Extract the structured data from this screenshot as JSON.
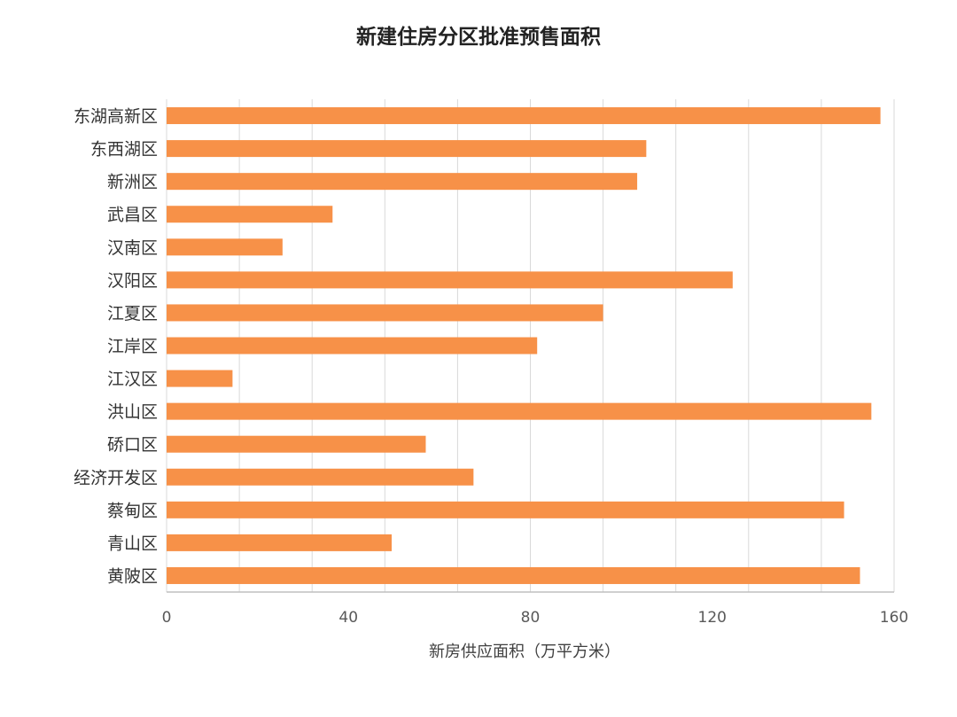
{
  "chart_data": {
    "type": "bar",
    "orientation": "horizontal",
    "title": "新建住房分区批准预售面积",
    "xlabel": "新房供应面积（万平方米）",
    "ylabel": "",
    "categories": [
      "东湖高新区",
      "东西湖区",
      "新洲区",
      "武昌区",
      "汉南区",
      "汉阳区",
      "江夏区",
      "江岸区",
      "江汉区",
      "洪山区",
      "硚口区",
      "经济开发区",
      "蔡甸区",
      "青山区",
      "黄陂区"
    ],
    "values": [
      157,
      105.5,
      103.5,
      36.5,
      25.5,
      124.5,
      96,
      81.5,
      14.5,
      155,
      57,
      67.5,
      149,
      49.5,
      152.5
    ],
    "xlim": [
      0,
      160
    ],
    "xticks": [
      "0",
      "40",
      "80",
      "120",
      "160"
    ],
    "gridlines": [
      0,
      16,
      32,
      48,
      64,
      80,
      96,
      112,
      128,
      144,
      160
    ],
    "grid": true,
    "bar_color": "#F79148"
  }
}
